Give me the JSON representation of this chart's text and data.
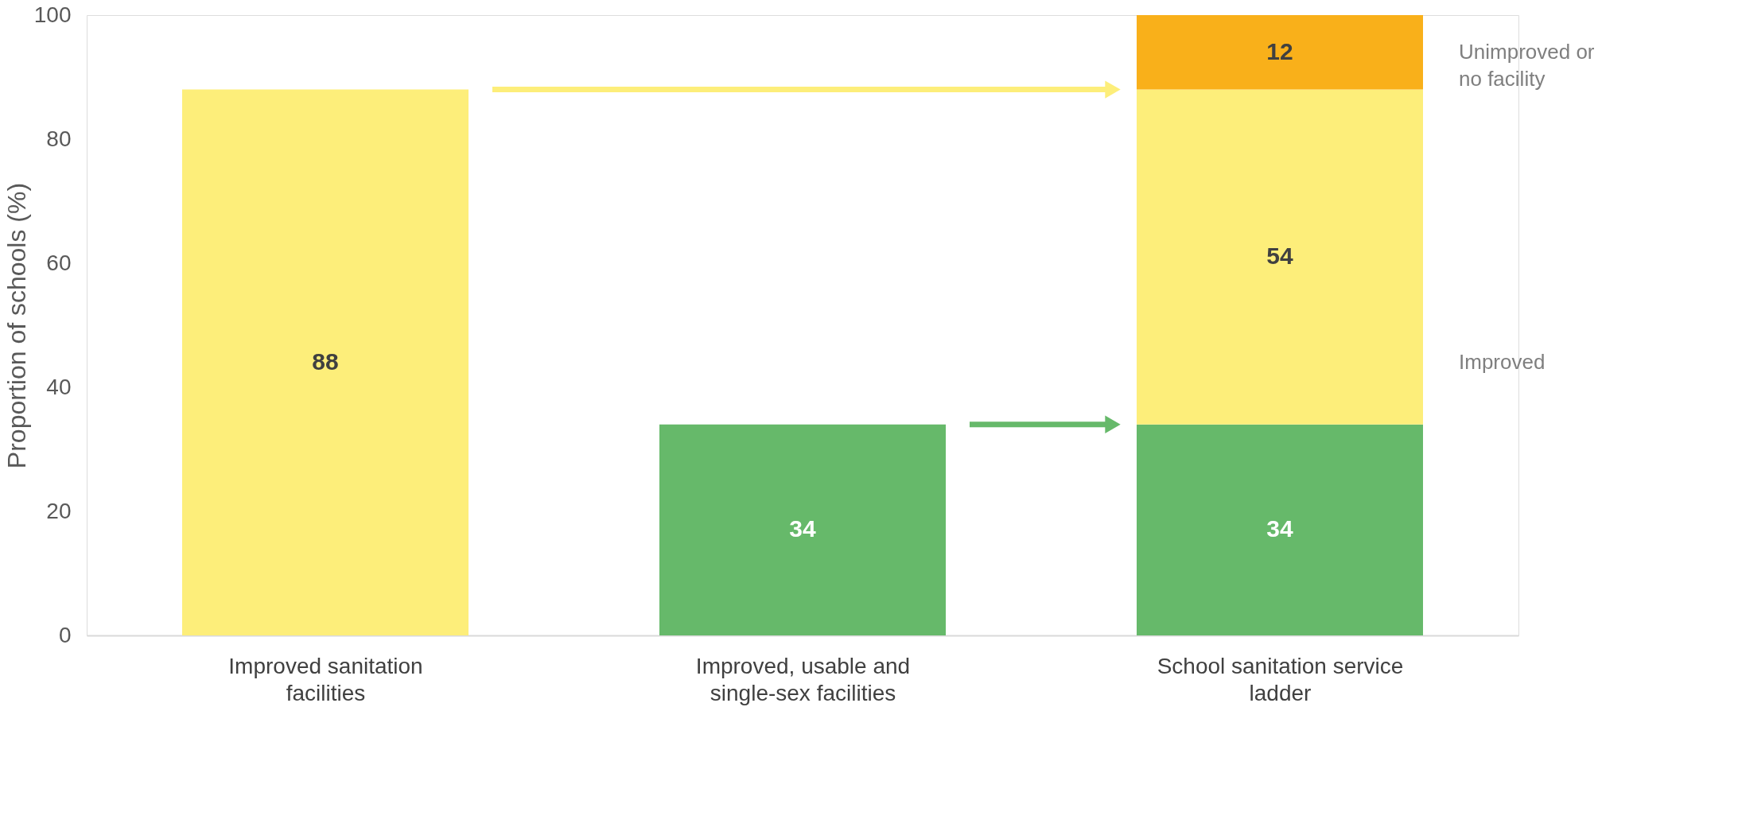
{
  "chart_data": {
    "type": "bar",
    "stacked": true,
    "ylabel": "Proportion of schools (%)",
    "categories": [
      "Improved sanitation facilities",
      "Improved, usable and single-sex facilities",
      "School sanitation service ladder"
    ],
    "series": [
      {
        "color": "#66b96a",
        "values": [
          null,
          34,
          34
        ]
      },
      {
        "color": "#fdee7a",
        "values": [
          88,
          null,
          54
        ]
      },
      {
        "color": "#f9b01a",
        "values": [
          null,
          null,
          12
        ]
      }
    ],
    "ylim": [
      0,
      100
    ],
    "yticks": [
      0,
      20,
      40,
      60,
      80,
      100
    ],
    "grid": false,
    "data_labels": true,
    "annotations": [
      "Unimproved or no facility",
      "Improved"
    ]
  }
}
